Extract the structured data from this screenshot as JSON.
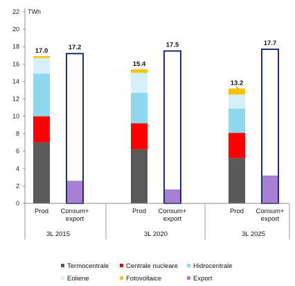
{
  "chart_data": {
    "type": "bar",
    "stacked": true,
    "unit_label": "TWh",
    "ylim": [
      0,
      22
    ],
    "yticks": [
      0,
      2,
      4,
      6,
      8,
      10,
      12,
      14,
      16,
      18,
      20,
      22
    ],
    "groups": [
      {
        "label": "3L 2015",
        "prod_label": "Prod",
        "consum_label": [
          "Consum+",
          "export"
        ],
        "prod_total": "17.0",
        "consum_total": "17.2",
        "consum_value": 17.2,
        "prod": {
          "Termocentrale": 7.0,
          "Centrale nucleare": 3.0,
          "Hidrocentrale": 4.9,
          "Eoliene": 1.8,
          "Fotovoltaice": 0.2
        },
        "export": 2.6
      },
      {
        "label": "3L 2020",
        "prod_label": "Prod",
        "consum_label": [
          "Consum+",
          "export"
        ],
        "prod_total": "15.4",
        "consum_total": "17.5",
        "consum_value": 17.5,
        "prod": {
          "Termocentrale": 6.2,
          "Centrale nucleare": 3.0,
          "Hidrocentrale": 3.5,
          "Eoliene": 2.3,
          "Fotovoltaice": 0.4
        },
        "export": 1.6
      },
      {
        "label": "3L 2025",
        "prod_label": "Prod",
        "consum_label": [
          "Consum+",
          "export"
        ],
        "prod_total": "13.2",
        "consum_total": "17.7",
        "consum_value": 17.7,
        "prod": {
          "Termocentrale": 5.2,
          "Centrale nucleare": 2.9,
          "Hidrocentrale": 2.8,
          "Eoliene": 1.6,
          "Fotovoltaice": 0.7
        },
        "export": 3.2
      }
    ],
    "legend": [
      {
        "name": "Termocentrale",
        "color": "#595959"
      },
      {
        "name": "Centrale nucleare",
        "color": "#ff0000"
      },
      {
        "name": "Hidrocentrale",
        "color": "#8fd8f2"
      },
      {
        "name": "Eoliene",
        "color": "#d6f0fb"
      },
      {
        "name": "Fotovoltaice",
        "color": "#ffc000"
      },
      {
        "name": "Export",
        "color": "#a97fd6"
      }
    ],
    "consum_outline_color": "#1a2d7a",
    "grid": false,
    "legend_position": "bottom"
  }
}
